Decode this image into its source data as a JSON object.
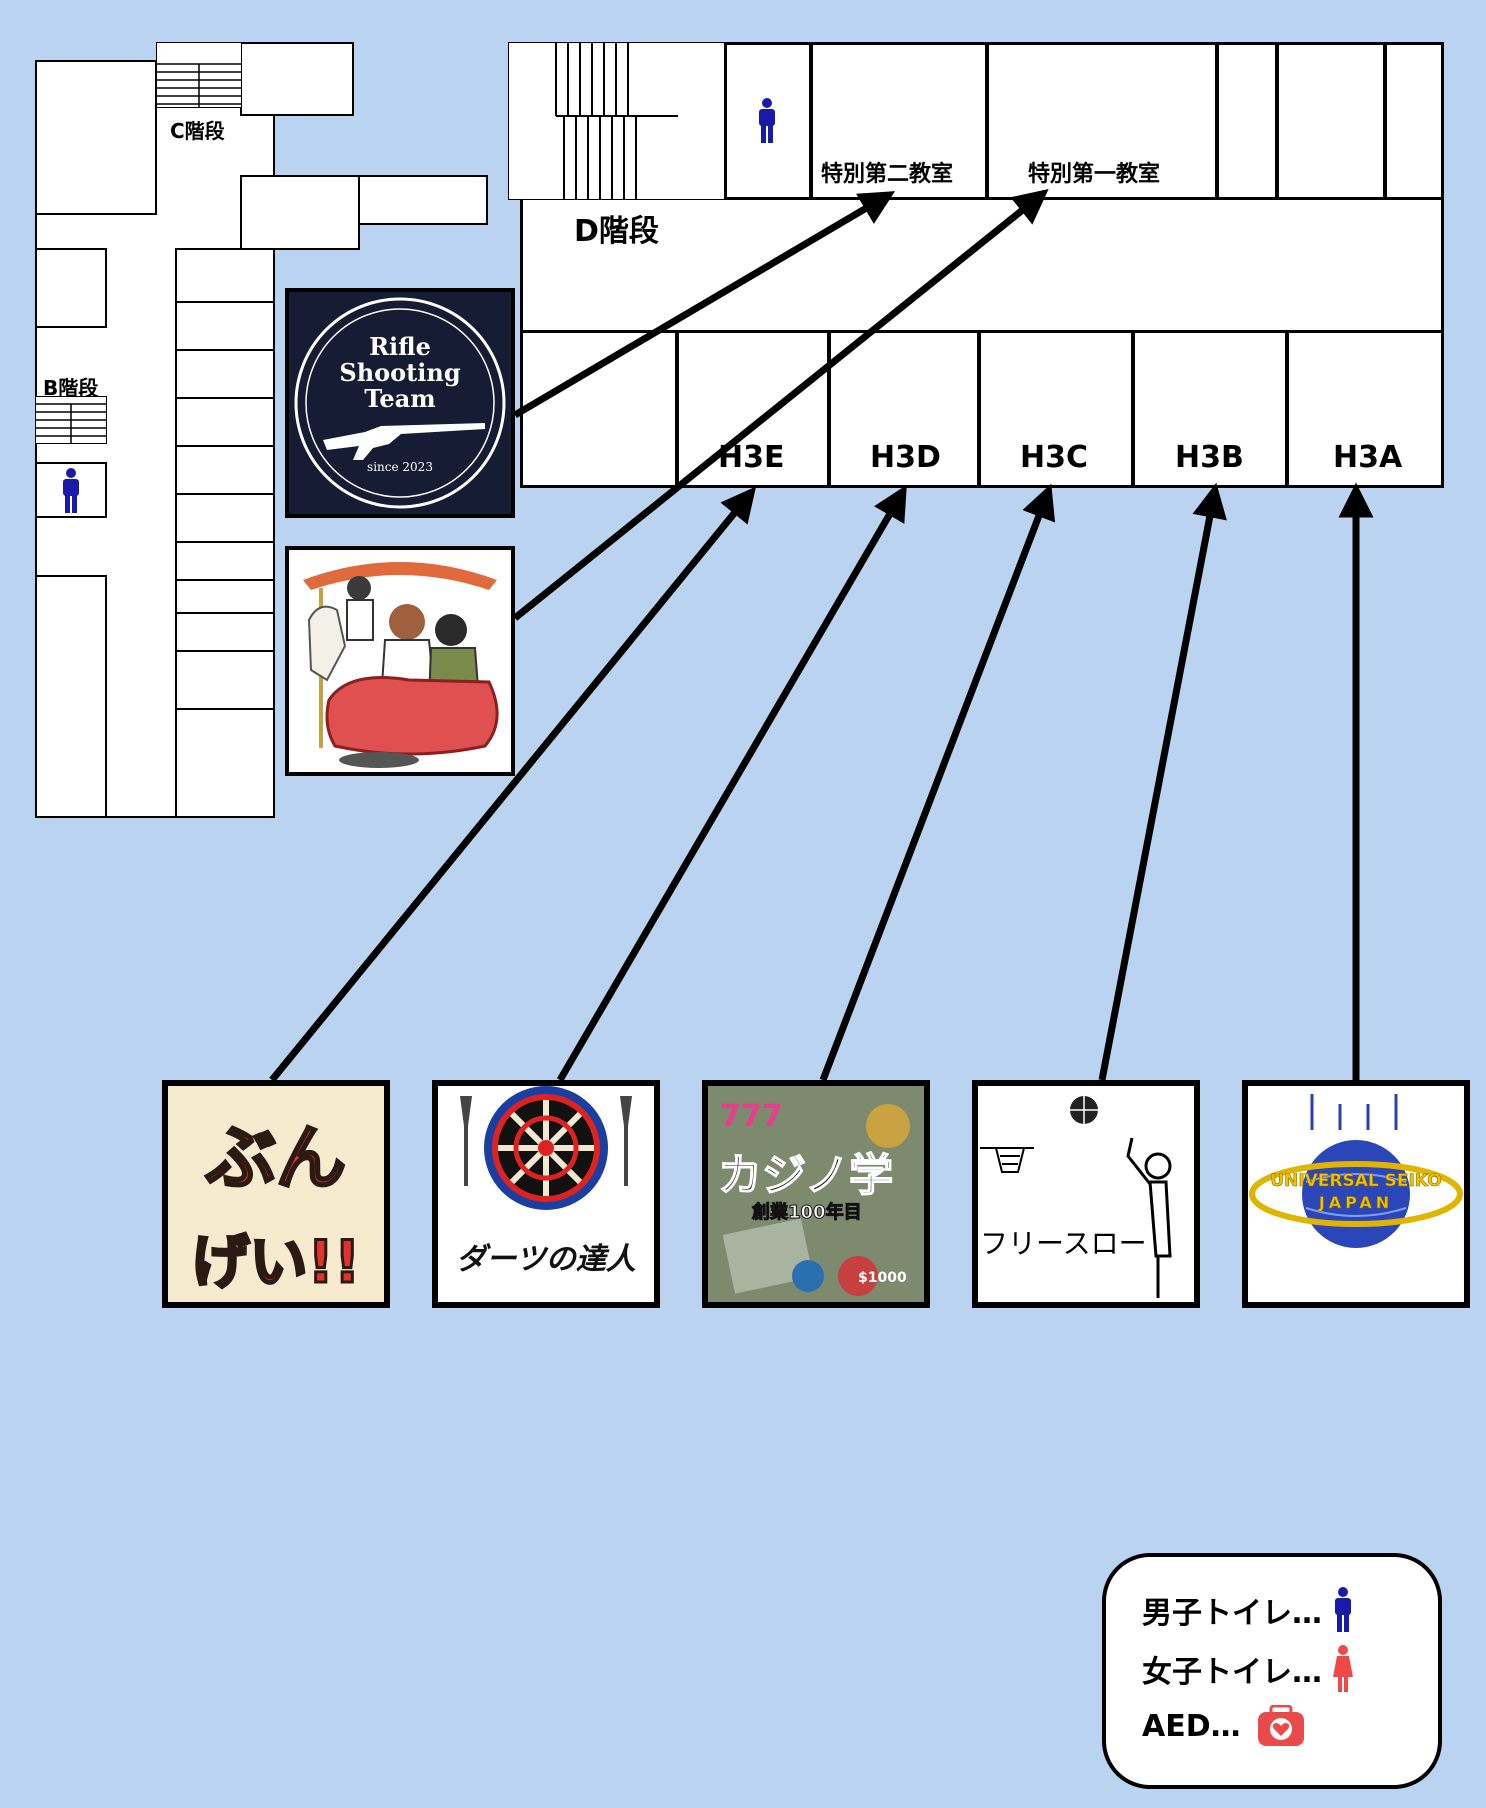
{
  "map": {
    "stairs": {
      "c": "C階段",
      "b": "B階段",
      "d": "D階段"
    },
    "special_rooms": [
      {
        "id": "special-2",
        "label": "特別第二教室"
      },
      {
        "id": "special-1",
        "label": "特別第一教室"
      }
    ],
    "classrooms": [
      {
        "id": "h3e",
        "label": "H3E"
      },
      {
        "id": "h3d",
        "label": "H3D"
      },
      {
        "id": "h3c",
        "label": "H3C"
      },
      {
        "id": "h3b",
        "label": "H3B"
      },
      {
        "id": "h3a",
        "label": "H3A"
      }
    ],
    "icons": [
      "mens-restroom-icon",
      "womens-restroom-icon",
      "aed-icon"
    ],
    "colors": {
      "background": "#bad3f0",
      "mens": "#1a1aa8",
      "womens": "#f04848",
      "aed": "#e94b4b"
    }
  },
  "exhibits": {
    "rifle": {
      "title_lines": [
        "Rifle",
        "Shooting",
        "Team"
      ],
      "since": "since 2023"
    },
    "bungei": {
      "text": "ぶん げい!!"
    },
    "darts": {
      "text": "ダーツの達人"
    },
    "casino": {
      "text": "777 カジノ 学",
      "sub": "創業100年目",
      "chip": "$1000"
    },
    "freethrow": {
      "text": "フリースロー"
    },
    "usj": {
      "text_top": "UNIVERSAL SEIKO",
      "text_bottom": "JAPAN"
    }
  },
  "legend": {
    "mens": "男子トイレ…",
    "womens": "女子トイレ…",
    "aed": "AED…"
  }
}
